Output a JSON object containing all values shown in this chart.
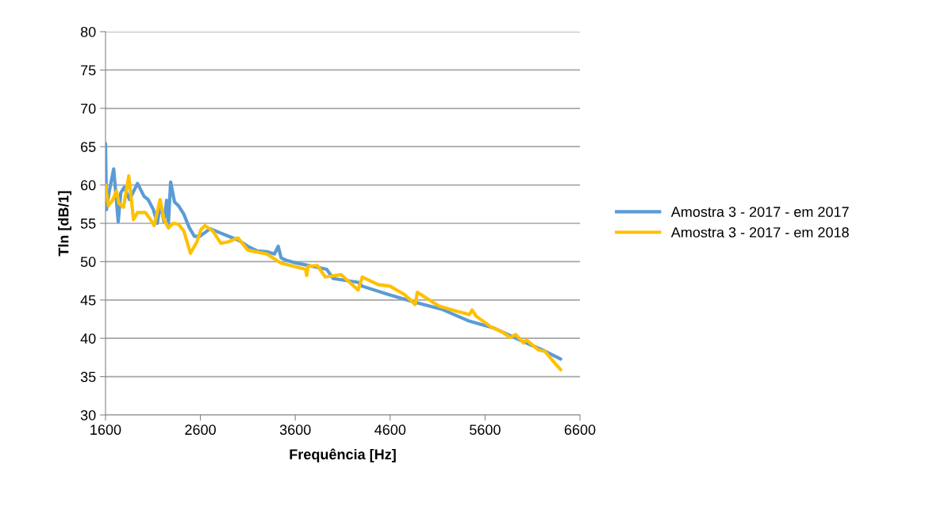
{
  "chart_data": {
    "type": "line",
    "xlabel": "Frequência [Hz]",
    "ylabel": "Tln [dB/1]",
    "xlim": [
      1600,
      6600
    ],
    "xticks": [
      1600,
      2600,
      3600,
      4600,
      5600,
      6600
    ],
    "ylim": [
      30,
      80
    ],
    "yticks": [
      30,
      35,
      40,
      45,
      50,
      55,
      60,
      65,
      70,
      75,
      80
    ],
    "grid": "y",
    "legend": "right",
    "marker": "none",
    "line_style": "solid",
    "series": [
      {
        "name": "Amostra 3 - 2017 - em 2017",
        "color": "#5b9bd5",
        "x": [
          1600,
          1610,
          1640,
          1686,
          1734,
          1761,
          1798,
          1853,
          1937,
          2007,
          2049,
          2104,
          2146,
          2180,
          2216,
          2244,
          2263,
          2286,
          2327,
          2369,
          2425,
          2480,
          2537,
          2592,
          2648,
          2700,
          2800,
          2900,
          3000,
          3100,
          3200,
          3300,
          3380,
          3420,
          3450,
          3500,
          3582,
          3930,
          4000,
          4263,
          4306,
          4585,
          4864,
          5142,
          5421,
          5700,
          5978,
          6201,
          6397
        ],
        "values": [
          65.4,
          56.8,
          59.2,
          62.1,
          55.2,
          59.0,
          59.7,
          58.1,
          60.2,
          58.5,
          58.1,
          56.8,
          55.0,
          57.6,
          55.2,
          58.0,
          55.0,
          60.4,
          57.8,
          57.3,
          56.2,
          54.5,
          53.3,
          53.3,
          53.8,
          54.3,
          53.8,
          53.3,
          52.8,
          52.0,
          51.4,
          51.3,
          51.0,
          52.0,
          50.5,
          50.2,
          49.9,
          49.0,
          47.8,
          47.3,
          46.8,
          45.7,
          44.7,
          43.8,
          42.3,
          41.3,
          39.7,
          38.5,
          37.3
        ]
      },
      {
        "name": "Amostra 3 - 2017 - em 2018",
        "color": "#ffc000",
        "x": [
          1600,
          1630,
          1673,
          1715,
          1742,
          1790,
          1845,
          1895,
          1937,
          2021,
          2063,
          2113,
          2175,
          2216,
          2263,
          2313,
          2369,
          2425,
          2495,
          2564,
          2606,
          2648,
          2731,
          2815,
          2898,
          2996,
          3100,
          3300,
          3450,
          3582,
          3707,
          3721,
          3735,
          3832,
          3916,
          4083,
          4263,
          4306,
          4473,
          4599,
          4752,
          4864,
          4886,
          5114,
          5310,
          5435,
          5463,
          5505,
          5672,
          5770,
          5867,
          5923,
          6006,
          6034,
          6160,
          6230,
          6313,
          6397
        ],
        "values": [
          60.0,
          57.3,
          58.0,
          59.2,
          57.6,
          57.1,
          61.2,
          55.5,
          56.4,
          56.4,
          55.7,
          54.7,
          58.1,
          55.5,
          54.4,
          55.0,
          54.9,
          54.0,
          51.1,
          52.6,
          54.2,
          54.7,
          54.0,
          52.4,
          52.6,
          53.1,
          51.5,
          51.0,
          49.8,
          49.4,
          49.0,
          48.2,
          49.4,
          49.5,
          48.0,
          48.3,
          46.3,
          48.0,
          47.0,
          46.8,
          45.7,
          44.4,
          46.0,
          44.2,
          43.5,
          43.1,
          43.7,
          42.9,
          41.4,
          40.9,
          40.1,
          40.5,
          39.4,
          39.8,
          38.5,
          38.3,
          37.1,
          35.9
        ]
      }
    ]
  }
}
